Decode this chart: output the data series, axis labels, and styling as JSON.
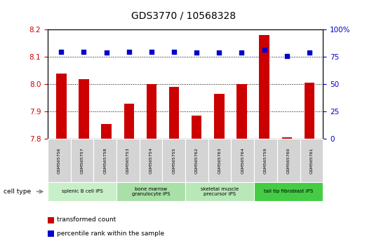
{
  "title": "GDS3770 / 10568328",
  "samples": [
    "GSM565756",
    "GSM565757",
    "GSM565758",
    "GSM565753",
    "GSM565754",
    "GSM565755",
    "GSM565762",
    "GSM565763",
    "GSM565764",
    "GSM565759",
    "GSM565760",
    "GSM565761"
  ],
  "transformed_count": [
    8.04,
    8.02,
    7.855,
    7.93,
    8.0,
    7.99,
    7.885,
    7.965,
    8.0,
    8.18,
    7.805,
    8.005
  ],
  "percentile_rank": [
    80,
    80,
    79,
    80,
    80,
    80,
    79,
    79,
    79,
    82,
    76,
    79
  ],
  "ylim_left": [
    7.8,
    8.2
  ],
  "ylim_right": [
    0,
    100
  ],
  "yticks_left": [
    7.8,
    7.9,
    8.0,
    8.1,
    8.2
  ],
  "yticks_right": [
    0,
    25,
    50,
    75,
    100
  ],
  "bar_color": "#cc0000",
  "dot_color": "#0000cc",
  "cell_types": [
    {
      "label": "splenic B cell iPS",
      "start": 0,
      "end": 3,
      "color": "#c8f0c8"
    },
    {
      "label": "bone marrow\ngranulocyte iPS",
      "start": 3,
      "end": 6,
      "color": "#a8e0a8"
    },
    {
      "label": "skeletal muscle\nprecursor iPS",
      "start": 6,
      "end": 9,
      "color": "#b8e8b8"
    },
    {
      "label": "tail tip fibroblast iPS",
      "start": 9,
      "end": 12,
      "color": "#44cc44"
    }
  ],
  "legend_bar_label": "transformed count",
  "legend_dot_label": "percentile rank within the sample",
  "cell_type_label": "cell type",
  "grid_color": "#000000",
  "tick_color_left": "#cc0000",
  "tick_color_right": "#0000cc",
  "sample_box_color": "#d4d4d4",
  "title_fontsize": 10,
  "axis_fontsize": 7.5,
  "label_fontsize": 6,
  "bar_width": 0.45
}
